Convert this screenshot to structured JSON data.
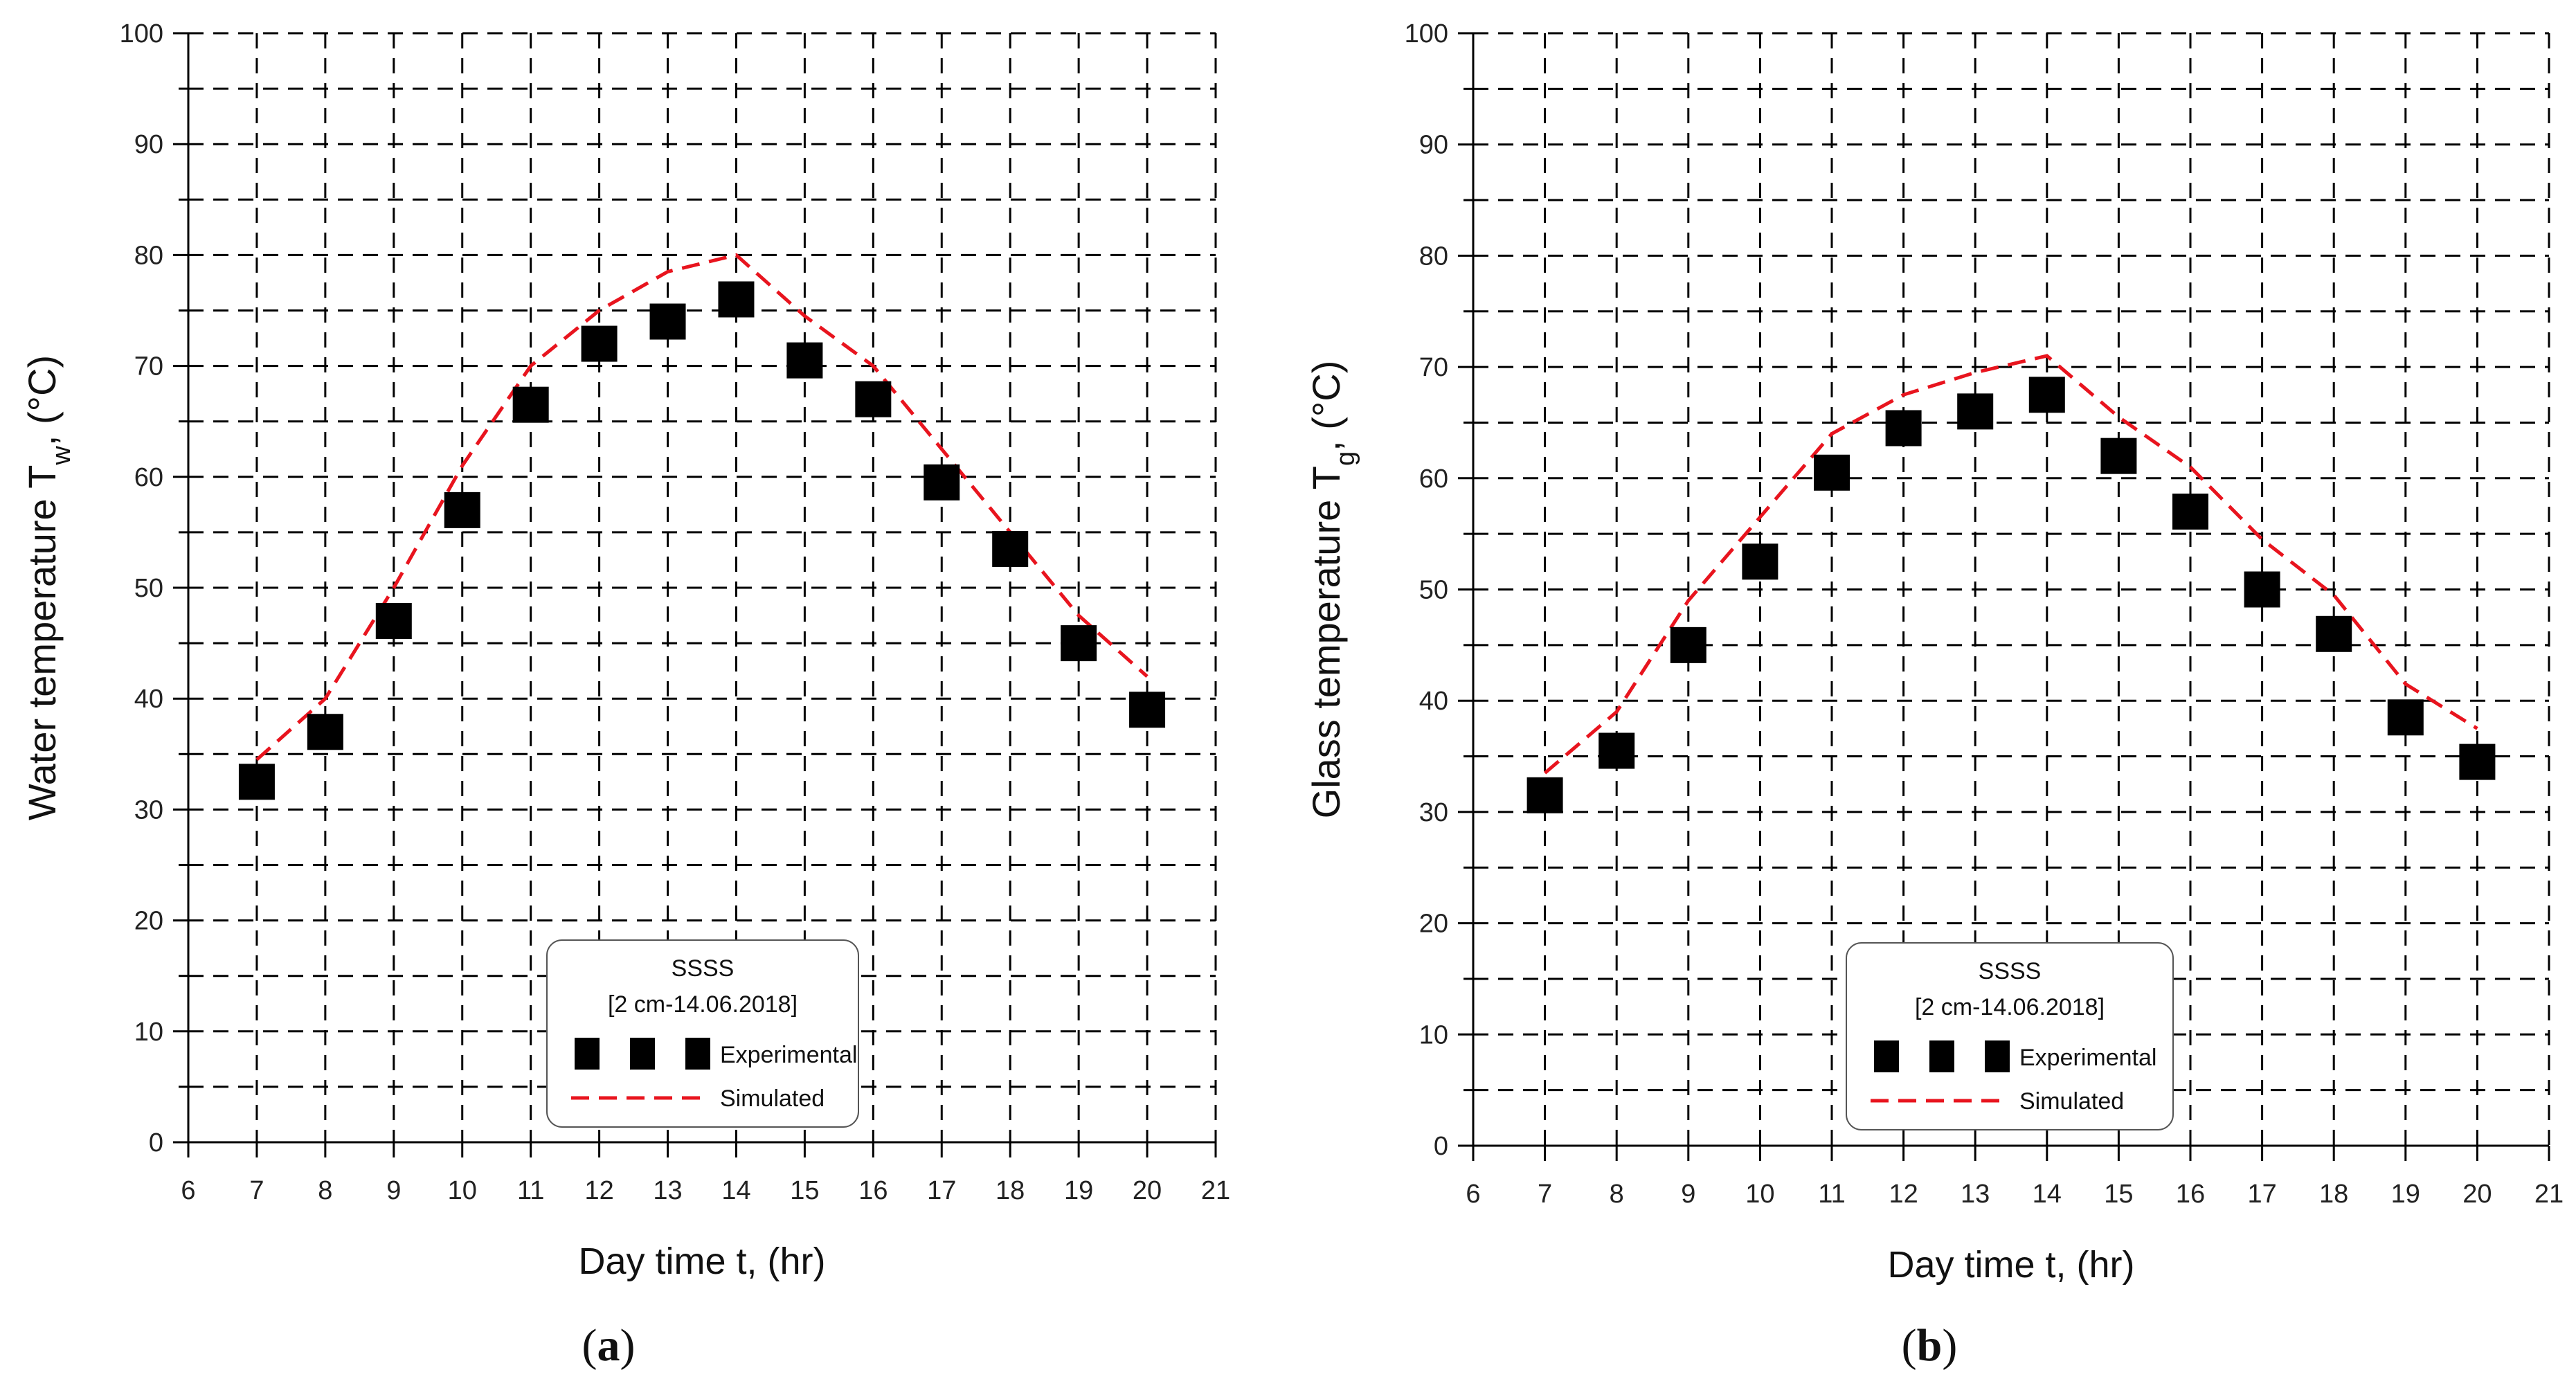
{
  "chart_data": [
    {
      "type": "scatter",
      "panel_label": "(a)",
      "panel_letter": "a",
      "ylabel_main": "Water temperature T",
      "ylabel_sub": "w",
      "ylabel_unit": "(°C)",
      "xlabel": "Day time t, (hr)",
      "xlim": [
        6,
        21
      ],
      "ylim": [
        0,
        100
      ],
      "x_ticks": [
        6,
        7,
        8,
        9,
        10,
        11,
        12,
        13,
        14,
        15,
        16,
        17,
        18,
        19,
        20,
        21
      ],
      "y_ticks": [
        0,
        10,
        20,
        30,
        40,
        50,
        60,
        70,
        80,
        90,
        100
      ],
      "grid": "dashed",
      "legend": {
        "title": "SSSS",
        "subtitle": "[2 cm-14.06.2018]",
        "placement": "bottom-center",
        "entries": [
          "Experimental",
          "Simulated"
        ]
      },
      "series": [
        {
          "name": "Experimental",
          "style": "black-squares",
          "x": [
            7,
            8,
            9,
            10,
            11,
            12,
            13,
            14,
            15,
            16,
            17,
            18,
            19,
            20
          ],
          "values": [
            32.5,
            37,
            47,
            57,
            66.5,
            72,
            74,
            76,
            70.5,
            67,
            59.5,
            53.5,
            45,
            39
          ]
        },
        {
          "name": "Simulated",
          "style": "red-dashed",
          "x": [
            7,
            8,
            9,
            10,
            11,
            12,
            13,
            14,
            15,
            16,
            17,
            18,
            19,
            20
          ],
          "values": [
            34.5,
            40,
            50,
            61,
            70,
            75,
            78.5,
            80,
            74.5,
            70,
            62.5,
            55,
            47.5,
            42
          ]
        }
      ]
    },
    {
      "type": "scatter",
      "panel_label": "(b)",
      "panel_letter": "b",
      "ylabel_main": "Glass temperature T",
      "ylabel_sub": "g",
      "ylabel_unit": "(°C)",
      "xlabel": "Day time t, (hr)",
      "xlim": [
        6,
        21
      ],
      "ylim": [
        0,
        100
      ],
      "x_ticks": [
        6,
        7,
        8,
        9,
        10,
        11,
        12,
        13,
        14,
        15,
        16,
        17,
        18,
        19,
        20,
        21
      ],
      "y_ticks": [
        0,
        10,
        20,
        30,
        40,
        50,
        60,
        70,
        80,
        90,
        100
      ],
      "grid": "dashed",
      "legend": {
        "title": "SSSS",
        "subtitle": "[2 cm-14.06.2018]",
        "placement": "bottom-center",
        "entries": [
          "Experimental",
          "Simulated"
        ]
      },
      "series": [
        {
          "name": "Experimental",
          "style": "black-squares",
          "x": [
            7,
            8,
            9,
            10,
            11,
            12,
            13,
            14,
            15,
            16,
            17,
            18,
            19,
            20
          ],
          "values": [
            31.5,
            35.5,
            45,
            52.5,
            60.5,
            64.5,
            66,
            67.5,
            62,
            57,
            50,
            46,
            38.5,
            34.5
          ]
        },
        {
          "name": "Simulated",
          "style": "red-dashed",
          "x": [
            7,
            8,
            9,
            10,
            11,
            12,
            13,
            14,
            15,
            16,
            17,
            18,
            19,
            20
          ],
          "values": [
            33.5,
            39,
            49,
            56.5,
            64,
            67.5,
            69.5,
            71,
            65.5,
            61,
            54.5,
            49.5,
            41.5,
            37.5
          ]
        }
      ]
    }
  ],
  "colors": {
    "experimental": "#000000",
    "simulated": "#e8141e",
    "grid": "#000000",
    "axis": "#000000"
  }
}
